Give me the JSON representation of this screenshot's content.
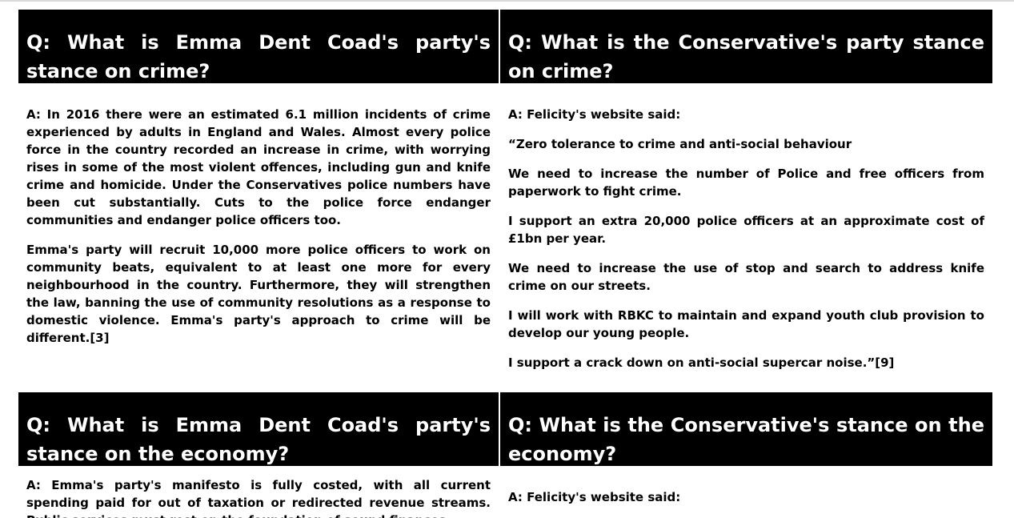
{
  "sections": [
    {
      "question": "Q: What is Emma Dent Coad's party's stance on crime?",
      "paragraphs": [
        "A: In 2016 there were an estimated 6.1 million incidents of crime experienced by adults in England and Wales. Almost every police force in the country recorded an increase in crime, with worrying rises in some of the most violent offences, including gun and knife crime and homicide. Under the Conservatives police numbers have been cut substantially. Cuts to the police force endanger communities and endanger police officers too.",
        "Emma's party will recruit 10,000 more police officers to work on community beats, equivalent to at least one more for every neighbourhood in the country. Furthermore, they will strengthen the law, banning the use of community resolutions as a response to domestic violence. Emma's party's approach to crime will be different.[3]"
      ]
    },
    {
      "question": "Q: What is the Conservative's party stance on crime?",
      "paragraphs": [
        "A: Felicity's website said:",
        "“Zero tolerance to crime and anti-social behaviour",
        "We need to increase the number of Police and free officers from paperwork to fight crime.",
        "I support an extra 20,000 police officers at an approximate cost of £1bn per year.",
        "We need to increase the use of stop and search to address knife crime on our streets.",
        "I will work with RBKC to maintain and expand youth club provision to develop our young people.",
        "I support a crack down on anti-social supercar noise.”[9]"
      ]
    },
    {
      "question": "Q: What is Emma Dent Coad's party's stance on the economy?",
      "paragraphs": [
        "A: Emma's party's manifesto is fully costed, with all current spending paid for out of taxation or redirected revenue streams. Public services must rest on the foundation of sound finances."
      ]
    },
    {
      "question": "Q: What is the Conservative's stance on the economy?",
      "paragraphs": [
        "A: Felicity's website said:"
      ]
    }
  ]
}
